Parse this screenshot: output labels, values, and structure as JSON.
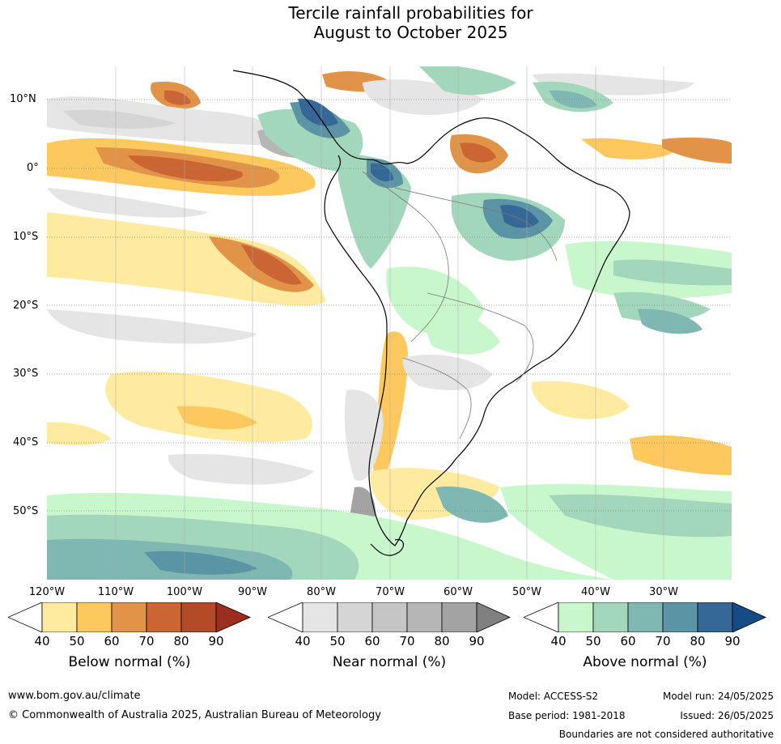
{
  "title": {
    "line1": "Tercile rainfall probabilities for",
    "line2": "August to October 2025"
  },
  "map": {
    "lat_labels": [
      "10°N",
      "0°",
      "10°S",
      "20°S",
      "30°S",
      "40°S",
      "50°S"
    ],
    "lon_labels": [
      "120°W",
      "110°W",
      "100°W",
      "90°W",
      "80°W",
      "70°W",
      "60°W",
      "50°W",
      "40°W",
      "30°W"
    ]
  },
  "colorbars": [
    {
      "title": "Below normal (%)",
      "ticks": [
        "40",
        "50",
        "60",
        "70",
        "80",
        "90"
      ],
      "colors": [
        "#ffffff",
        "#ffeba0",
        "#fdc95e",
        "#e19447",
        "#cc6534",
        "#b34a28",
        "#9b2e1e"
      ]
    },
    {
      "title": "Near normal (%)",
      "ticks": [
        "40",
        "50",
        "60",
        "70",
        "80",
        "90"
      ],
      "colors": [
        "#ffffff",
        "#e5e5e5",
        "#d5d5d5",
        "#c5c5c5",
        "#b6b6b6",
        "#a3a3a3",
        "#808080"
      ]
    },
    {
      "title": "Above normal (%)",
      "ticks": [
        "40",
        "50",
        "60",
        "70",
        "80",
        "90"
      ],
      "colors": [
        "#ffffff",
        "#c9f7cc",
        "#a3d7bb",
        "#7fb7b2",
        "#5b94a5",
        "#356897",
        "#154c86"
      ]
    }
  ],
  "footer": {
    "url": "www.bom.gov.au/climate",
    "copyright": "© Commonwealth of Australia 2025, Australian Bureau of Meteorology",
    "model": "Model: ACCESS-S2",
    "base_period": "Base period: 1981-2018",
    "model_run": "Model run: 24/05/2025",
    "issued": "Issued: 26/05/2025",
    "disclaimer": "Boundaries are not considered authoritative"
  }
}
